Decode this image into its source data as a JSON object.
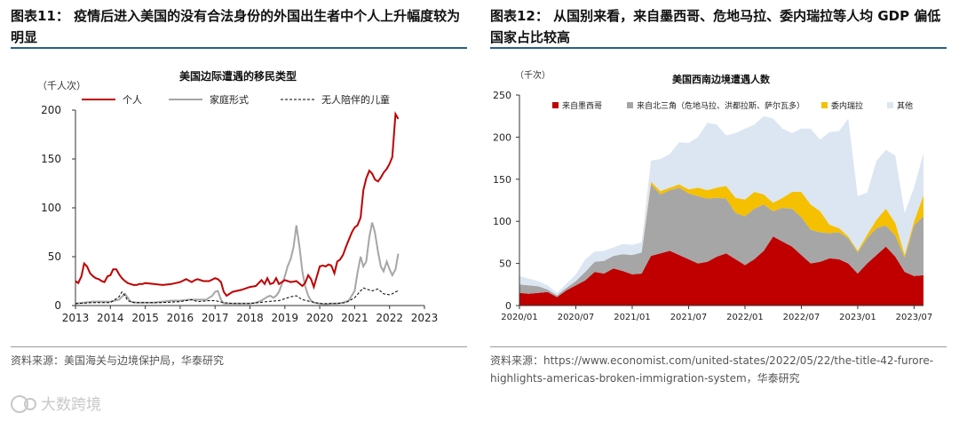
{
  "left": {
    "figure_title": "图表11：  疫情后进入美国的没有合法身份的外国出生者中个人上升幅度较为明显",
    "source": "资料来源：美国海关与边境保护局，华泰研究"
  },
  "right": {
    "figure_title": "图表12：  从国别来看，来自墨西哥、危地马拉、委内瑞拉等人均 GDP 偏低国家占比较高",
    "source": "资料来源：https://www.economist.com/united-states/2022/05/22/the-title-42-furore-highlights-americas-broken-immigration-system，华泰研究"
  },
  "watermark": {
    "text": "大数跨境"
  },
  "chart_data": [
    {
      "type": "line",
      "title": "美国边际遭遇的移民类型",
      "ylabel": "（千人次）",
      "xlim": [
        2013,
        2023
      ],
      "ylim": [
        0,
        200
      ],
      "xticks": [
        "2013",
        "2014",
        "2015",
        "2016",
        "2017",
        "2018",
        "2019",
        "2020",
        "2021",
        "2022",
        "2023"
      ],
      "yticks": [
        "0",
        "50",
        "100",
        "150",
        "200"
      ],
      "legend_position": "top",
      "series": [
        {
          "name": "个人",
          "color": "#c00000",
          "style": "solid",
          "x": [
            2013.0,
            2013.08,
            2013.17,
            2013.25,
            2013.33,
            2013.42,
            2013.5,
            2013.58,
            2013.67,
            2013.75,
            2013.83,
            2013.92,
            2014.0,
            2014.08,
            2014.17,
            2014.25,
            2014.33,
            2014.42,
            2014.5,
            2014.58,
            2014.67,
            2014.75,
            2014.83,
            2014.92,
            2015.0,
            2015.25,
            2015.5,
            2015.75,
            2016.0,
            2016.17,
            2016.33,
            2016.42,
            2016.5,
            2016.67,
            2016.83,
            2017.0,
            2017.08,
            2017.17,
            2017.25,
            2017.33,
            2017.5,
            2017.75,
            2018.0,
            2018.17,
            2018.33,
            2018.42,
            2018.5,
            2018.58,
            2018.67,
            2018.75,
            2018.83,
            2019.0,
            2019.17,
            2019.33,
            2019.5,
            2019.58,
            2019.67,
            2019.75,
            2019.83,
            2020.0,
            2020.08,
            2020.17,
            2020.25,
            2020.33,
            2020.42,
            2020.5,
            2020.58,
            2020.67,
            2020.75,
            2020.83,
            2020.92,
            2021.0,
            2021.08,
            2021.17,
            2021.25,
            2021.33,
            2021.42,
            2021.5,
            2021.58,
            2021.67,
            2021.75,
            2021.83,
            2021.92,
            2022.0,
            2022.08,
            2022.17,
            2022.25
          ],
          "y": [
            25,
            23,
            30,
            43,
            40,
            33,
            30,
            28,
            27,
            25,
            24,
            30,
            31,
            37,
            37,
            32,
            28,
            25,
            23,
            22,
            21,
            21,
            22,
            22,
            23,
            22,
            21,
            22,
            24,
            27,
            24,
            26,
            27,
            25,
            25,
            28,
            27,
            24,
            14,
            10,
            14,
            16,
            19,
            20,
            26,
            22,
            28,
            22,
            23,
            28,
            22,
            26,
            24,
            25,
            20,
            23,
            31,
            27,
            19,
            40,
            41,
            40,
            42,
            41,
            33,
            45,
            47,
            52,
            60,
            67,
            75,
            80,
            82,
            90,
            118,
            130,
            138,
            135,
            129,
            127,
            131,
            136,
            140,
            145,
            152,
            196,
            191
          ]
        },
        {
          "name": "家庭形式",
          "color": "#a6a6a6",
          "style": "solid",
          "x": [
            2013.0,
            2013.25,
            2013.5,
            2013.75,
            2014.0,
            2014.25,
            2014.33,
            2014.42,
            2014.5,
            2014.58,
            2014.75,
            2015.0,
            2015.25,
            2015.5,
            2015.75,
            2016.0,
            2016.25,
            2016.5,
            2016.75,
            2016.83,
            2016.92,
            2017.0,
            2017.08,
            2017.17,
            2017.25,
            2017.5,
            2017.75,
            2018.0,
            2018.17,
            2018.33,
            2018.5,
            2018.58,
            2018.67,
            2018.75,
            2018.83,
            2019.0,
            2019.08,
            2019.17,
            2019.25,
            2019.33,
            2019.42,
            2019.5,
            2019.58,
            2019.67,
            2019.75,
            2019.83,
            2020.0,
            2020.17,
            2020.33,
            2020.5,
            2020.67,
            2020.83,
            2021.0,
            2021.08,
            2021.17,
            2021.25,
            2021.33,
            2021.42,
            2021.5,
            2021.58,
            2021.67,
            2021.75,
            2021.83,
            2021.92,
            2022.0,
            2022.08,
            2022.17,
            2022.25
          ],
          "y": [
            2,
            3,
            4,
            4,
            4,
            6,
            9,
            12,
            8,
            4,
            3,
            3,
            3,
            4,
            5,
            5,
            6,
            6,
            6,
            8,
            10,
            14,
            15,
            6,
            2,
            2,
            2,
            2,
            3,
            5,
            9,
            10,
            8,
            10,
            14,
            30,
            40,
            48,
            60,
            82,
            60,
            35,
            20,
            10,
            5,
            3,
            2,
            1,
            2,
            2,
            3,
            5,
            15,
            33,
            50,
            40,
            45,
            70,
            85,
            75,
            55,
            40,
            35,
            45,
            37,
            31,
            37,
            53
          ]
        },
        {
          "name": "无人陪伴的儿童",
          "color": "#000000",
          "style": "dashed",
          "x": [
            2013.0,
            2013.5,
            2014.0,
            2014.25,
            2014.33,
            2014.42,
            2014.5,
            2014.67,
            2015.0,
            2015.5,
            2016.0,
            2016.33,
            2016.5,
            2016.83,
            2017.0,
            2017.25,
            2017.5,
            2018.0,
            2018.5,
            2018.83,
            2019.0,
            2019.17,
            2019.33,
            2019.5,
            2019.75,
            2020.0,
            2020.25,
            2020.5,
            2020.75,
            2021.0,
            2021.17,
            2021.25,
            2021.33,
            2021.5,
            2021.67,
            2021.83,
            2022.0,
            2022.08,
            2022.17,
            2022.25
          ],
          "y": [
            2,
            3,
            3,
            9,
            14,
            10,
            5,
            3,
            3,
            3,
            4,
            6,
            4,
            5,
            5,
            3,
            2,
            2,
            4,
            5,
            7,
            9,
            10,
            6,
            4,
            2,
            2,
            2,
            3,
            8,
            15,
            18,
            17,
            15,
            17,
            12,
            11,
            12,
            14,
            15
          ]
        }
      ]
    },
    {
      "type": "area",
      "title": "美国西南边境遭遇人数",
      "ylabel": "（千次）",
      "ylim": [
        0,
        250
      ],
      "yticks": [
        "0",
        "50",
        "100",
        "150",
        "200",
        "250"
      ],
      "xticks": [
        "2020/01",
        "2020/07",
        "2021/01",
        "2021/07",
        "2022/01",
        "2022/07",
        "2023/01",
        "2023/07"
      ],
      "legend_position": "top",
      "categories": [
        "2020/01",
        "2020/02",
        "2020/03",
        "2020/04",
        "2020/05",
        "2020/06",
        "2020/07",
        "2020/08",
        "2020/09",
        "2020/10",
        "2020/11",
        "2020/12",
        "2021/01",
        "2021/02",
        "2021/03",
        "2021/04",
        "2021/05",
        "2021/06",
        "2021/07",
        "2021/08",
        "2021/09",
        "2021/10",
        "2021/11",
        "2021/12",
        "2022/01",
        "2022/02",
        "2022/03",
        "2022/04",
        "2022/05",
        "2022/06",
        "2022/07",
        "2022/08",
        "2022/09",
        "2022/10",
        "2022/11",
        "2022/12",
        "2023/01",
        "2023/02",
        "2023/03",
        "2023/04",
        "2023/05",
        "2023/06",
        "2023/07",
        "2023/08"
      ],
      "series": [
        {
          "name": "来自墨西哥",
          "color": "#c00000",
          "values": [
            15,
            14,
            15,
            16,
            10,
            18,
            24,
            30,
            40,
            38,
            44,
            41,
            37,
            38,
            59,
            62,
            65,
            60,
            55,
            50,
            52,
            58,
            62,
            55,
            48,
            55,
            65,
            82,
            76,
            70,
            60,
            50,
            52,
            56,
            55,
            50,
            38,
            50,
            60,
            70,
            58,
            40,
            35,
            36
          ]
        },
        {
          "name": "来自北三角（危地马拉、洪都拉斯、萨尔瓦多）",
          "color": "#a6a6a6",
          "values": [
            10,
            10,
            8,
            3,
            2,
            3,
            5,
            10,
            12,
            15,
            15,
            20,
            23,
            25,
            85,
            70,
            72,
            80,
            78,
            80,
            75,
            70,
            65,
            55,
            58,
            60,
            55,
            30,
            40,
            45,
            45,
            40,
            35,
            30,
            32,
            30,
            25,
            30,
            32,
            25,
            25,
            17,
            60,
            70
          ]
        },
        {
          "name": "委内瑞拉",
          "color": "#f5c000",
          "values": [
            0,
            0,
            0,
            0,
            0,
            0,
            0,
            0,
            0,
            0,
            0,
            0,
            0,
            0,
            3,
            4,
            3,
            4,
            5,
            10,
            10,
            12,
            15,
            18,
            20,
            20,
            12,
            10,
            12,
            20,
            30,
            30,
            25,
            10,
            5,
            2,
            2,
            4,
            10,
            20,
            15,
            3,
            5,
            25
          ]
        },
        {
          "name": "其他",
          "color": "#dce6f2",
          "values": [
            10,
            8,
            6,
            5,
            3,
            5,
            8,
            15,
            12,
            12,
            10,
            12,
            12,
            12,
            25,
            38,
            40,
            50,
            55,
            60,
            80,
            75,
            60,
            77,
            84,
            80,
            93,
            100,
            82,
            70,
            75,
            90,
            85,
            110,
            115,
            140,
            65,
            50,
            70,
            70,
            80,
            50,
            40,
            50
          ]
        }
      ]
    }
  ]
}
